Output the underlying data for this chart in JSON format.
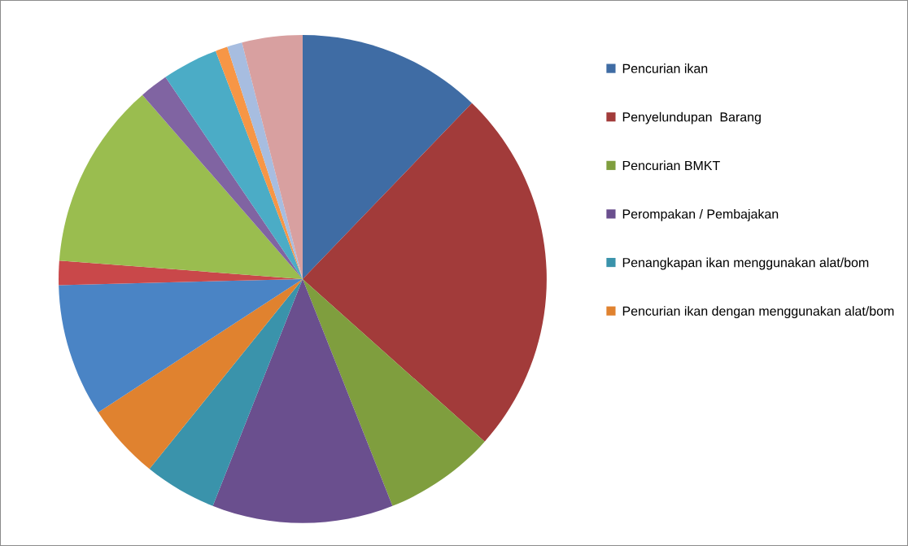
{
  "chart_data": {
    "type": "pie",
    "categories": [
      "Pencurian ikan",
      "Penyelundupan  Barang",
      "Pencurian BMKT",
      "Perompakan / Pembajakan",
      "Penangkapan ikan menggunakan alat/bom",
      "Pencurian ikan dengan menggunakan alat/bom",
      null,
      null,
      null,
      null,
      null,
      null,
      null,
      null
    ],
    "values": [
      12.2,
      24.4,
      7.4,
      12.0,
      4.8,
      5.0,
      8.8,
      1.6,
      12.4,
      1.9,
      3.7,
      0.8,
      1.0,
      4.0
    ],
    "colors": [
      "#3f6ca4",
      "#a23b3a",
      "#7f9e3e",
      "#6a4f8e",
      "#3a93ab",
      "#e0822f",
      "#4a84c5",
      "#c9484a",
      "#9abd4f",
      "#8064a2",
      "#4bacc6",
      "#f79646",
      "#a7bde0",
      "#d8a0a0"
    ],
    "legend": "right"
  }
}
